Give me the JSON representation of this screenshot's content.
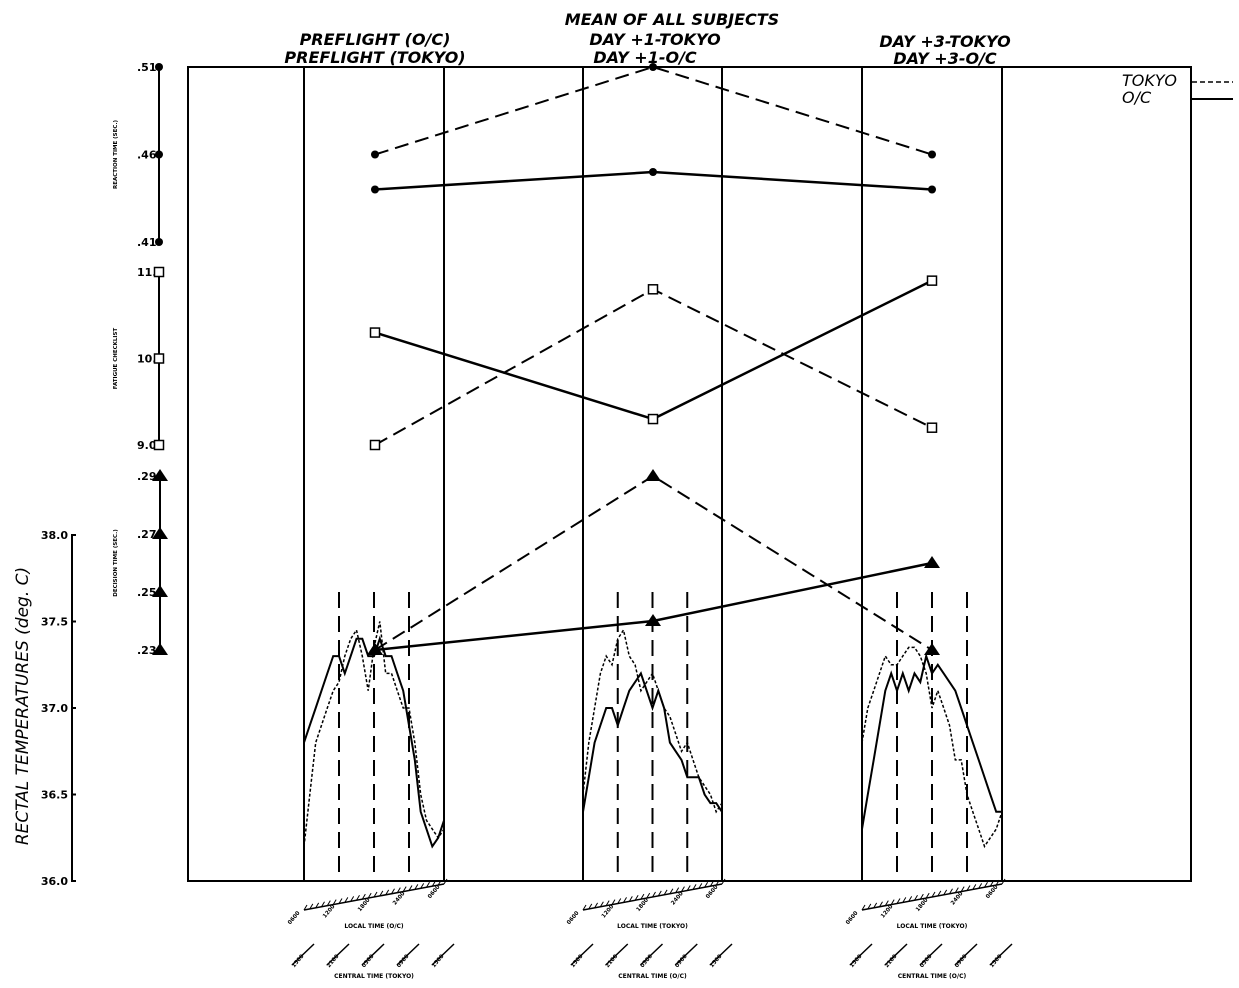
{
  "header": {
    "main_title": "MEAN OF ALL SUBJECTS",
    "preflight_oc": "PREFLIGHT (O/C)",
    "preflight_tokyo": "PREFLIGHT (TOKYO)",
    "day1_tokyo": "DAY +1-TOKYO",
    "day1_oc": "DAY +1-O/C",
    "day3_tokyo": "DAY +3-TOKYO",
    "day3_oc": "DAY +3-O/C"
  },
  "legend": {
    "tokyo": "TOKYO",
    "oc": "O/C"
  },
  "colors": {
    "ink": "#000000",
    "background": "#ffffff"
  },
  "bottom_axes": [
    {
      "local_ticks": [
        "0600",
        "1200",
        "1800",
        "2400",
        "0600"
      ],
      "local_caption": "LOCAL TIME (O/C)",
      "central_ticks": [
        "1500",
        "2100",
        "0300",
        "0900",
        "1500"
      ],
      "central_caption": "CENTRAL TIME (TOKYO)"
    },
    {
      "local_ticks": [
        "0600",
        "1200",
        "1800",
        "2400",
        "0600"
      ],
      "local_caption": "LOCAL TIME (TOKYO)",
      "central_ticks": [
        "1500",
        "2100",
        "0300",
        "0900",
        "1500"
      ],
      "central_caption": "CENTRAL TIME (O/C)"
    },
    {
      "local_ticks": [
        "0600",
        "1200",
        "1800",
        "2400",
        "0600"
      ],
      "local_caption": "LOCAL TIME (TOKYO)",
      "central_ticks": [
        "1500",
        "2100",
        "0300",
        "0900",
        "1500"
      ],
      "central_caption": "CENTRAL TIME (O/C)"
    }
  ],
  "chart_data": [
    {
      "type": "line",
      "ylabel": "REACTION TIME (SEC.)",
      "y_ticks": [
        ".41",
        ".46",
        ".51"
      ],
      "ylim": [
        0.41,
        0.51
      ],
      "categories": [
        "Preflight",
        "Day +1",
        "Day +3"
      ],
      "marker": "circle",
      "series": [
        {
          "name": "TOKYO",
          "line": "dashed",
          "values": [
            0.46,
            0.51,
            0.46
          ]
        },
        {
          "name": "O/C",
          "line": "solid",
          "values": [
            0.44,
            0.45,
            0.44
          ]
        }
      ]
    },
    {
      "type": "line",
      "ylabel": "FATIGUE CHECKLIST",
      "y_ticks": [
        "9.0",
        "10.0",
        "11.0"
      ],
      "ylim": [
        9.0,
        11.0
      ],
      "categories": [
        "Preflight",
        "Day +1",
        "Day +3"
      ],
      "marker": "square",
      "series": [
        {
          "name": "TOKYO",
          "line": "dashed",
          "values": [
            9.0,
            10.8,
            9.2
          ]
        },
        {
          "name": "O/C",
          "line": "solid",
          "values": [
            10.3,
            9.3,
            10.9
          ]
        }
      ]
    },
    {
      "type": "line",
      "ylabel": "DECISION TIME (SEC.)",
      "y_ticks": [
        ".23",
        ".25",
        ".27",
        ".29"
      ],
      "ylim": [
        0.23,
        0.29
      ],
      "categories": [
        "Preflight",
        "Day +1",
        "Day +3"
      ],
      "marker": "triangle",
      "series": [
        {
          "name": "TOKYO",
          "line": "dashed",
          "values": [
            0.23,
            0.29,
            0.23
          ]
        },
        {
          "name": "O/C",
          "line": "solid",
          "values": [
            0.23,
            0.24,
            0.26
          ]
        }
      ]
    },
    {
      "type": "line",
      "ylabel": "RECTAL TEMPERATURES (deg. C)",
      "y_ticks": [
        "36.0",
        "36.5",
        "37.0",
        "37.5",
        "38.0"
      ],
      "ylim": [
        36.0,
        38.0
      ],
      "x_unit": "hours after 0600 local time",
      "panels": [
        {
          "name": "Preflight",
          "tokyo": {
            "line": "dotted",
            "x": [
              0,
              1,
              2,
              3,
              4,
              5,
              6,
              7,
              8,
              9,
              10,
              11,
              12,
              13,
              14,
              15,
              16,
              17,
              18,
              19,
              20,
              21,
              22,
              23,
              24
            ],
            "y": [
              36.2,
              36.5,
              36.8,
              36.9,
              37.0,
              37.1,
              37.15,
              37.3,
              37.4,
              37.45,
              37.3,
              37.1,
              37.35,
              37.5,
              37.2,
              37.2,
              37.1,
              37.0,
              37.0,
              36.8,
              36.5,
              36.35,
              36.3,
              36.25,
              36.3
            ]
          },
          "oc": {
            "line": "solid",
            "x": [
              0,
              1,
              2,
              3,
              4,
              5,
              6,
              7,
              8,
              9,
              10,
              11,
              12,
              13,
              14,
              15,
              16,
              17,
              18,
              19,
              20,
              21,
              22,
              23,
              24
            ],
            "y": [
              36.8,
              36.9,
              37.0,
              37.1,
              37.2,
              37.3,
              37.3,
              37.2,
              37.3,
              37.4,
              37.4,
              37.3,
              37.3,
              37.4,
              37.3,
              37.3,
              37.2,
              37.1,
              36.9,
              36.7,
              36.4,
              36.3,
              36.2,
              36.25,
              36.35
            ]
          }
        },
        {
          "name": "Day +1",
          "tokyo": {
            "line": "dotted",
            "x": [
              0,
              1,
              2,
              3,
              4,
              5,
              6,
              7,
              8,
              9,
              10,
              11,
              12,
              13,
              14,
              15,
              16,
              17,
              18,
              19,
              20,
              21,
              22,
              23,
              24
            ],
            "y": [
              36.5,
              36.8,
              37.0,
              37.2,
              37.3,
              37.25,
              37.4,
              37.45,
              37.3,
              37.25,
              37.1,
              37.15,
              37.2,
              37.1,
              37.0,
              36.95,
              36.85,
              36.75,
              36.8,
              36.7,
              36.6,
              36.55,
              36.5,
              36.4,
              36.45
            ]
          },
          "oc": {
            "line": "solid",
            "x": [
              0,
              1,
              2,
              3,
              4,
              5,
              6,
              7,
              8,
              9,
              10,
              11,
              12,
              13,
              14,
              15,
              16,
              17,
              18,
              19,
              20,
              21,
              22,
              23,
              24
            ],
            "y": [
              36.4,
              36.6,
              36.8,
              36.9,
              37.0,
              37.0,
              36.9,
              37.0,
              37.1,
              37.15,
              37.2,
              37.1,
              37.0,
              37.1,
              37.0,
              36.8,
              36.75,
              36.7,
              36.6,
              36.6,
              36.6,
              36.5,
              36.45,
              36.45,
              36.4
            ]
          }
        },
        {
          "name": "Day +3",
          "tokyo": {
            "line": "dotted",
            "x": [
              0,
              1,
              2,
              3,
              4,
              5,
              6,
              7,
              8,
              9,
              10,
              11,
              12,
              13,
              14,
              15,
              16,
              17,
              18,
              19,
              20,
              21,
              22,
              23,
              24
            ],
            "y": [
              36.8,
              37.0,
              37.1,
              37.2,
              37.3,
              37.25,
              37.25,
              37.3,
              37.35,
              37.35,
              37.3,
              37.2,
              37.0,
              37.1,
              37.0,
              36.9,
              36.7,
              36.7,
              36.5,
              36.4,
              36.3,
              36.2,
              36.25,
              36.3,
              36.4
            ]
          },
          "oc": {
            "line": "solid",
            "x": [
              0,
              1,
              2,
              3,
              4,
              5,
              6,
              7,
              8,
              9,
              10,
              11,
              12,
              13,
              14,
              15,
              16,
              17,
              18,
              19,
              20,
              21,
              22,
              23,
              24
            ],
            "y": [
              36.3,
              36.5,
              36.7,
              36.9,
              37.1,
              37.2,
              37.1,
              37.2,
              37.1,
              37.2,
              37.15,
              37.3,
              37.2,
              37.25,
              37.2,
              37.15,
              37.1,
              37.0,
              36.9,
              36.8,
              36.7,
              36.6,
              36.5,
              36.4,
              36.4
            ]
          }
        }
      ]
    }
  ]
}
